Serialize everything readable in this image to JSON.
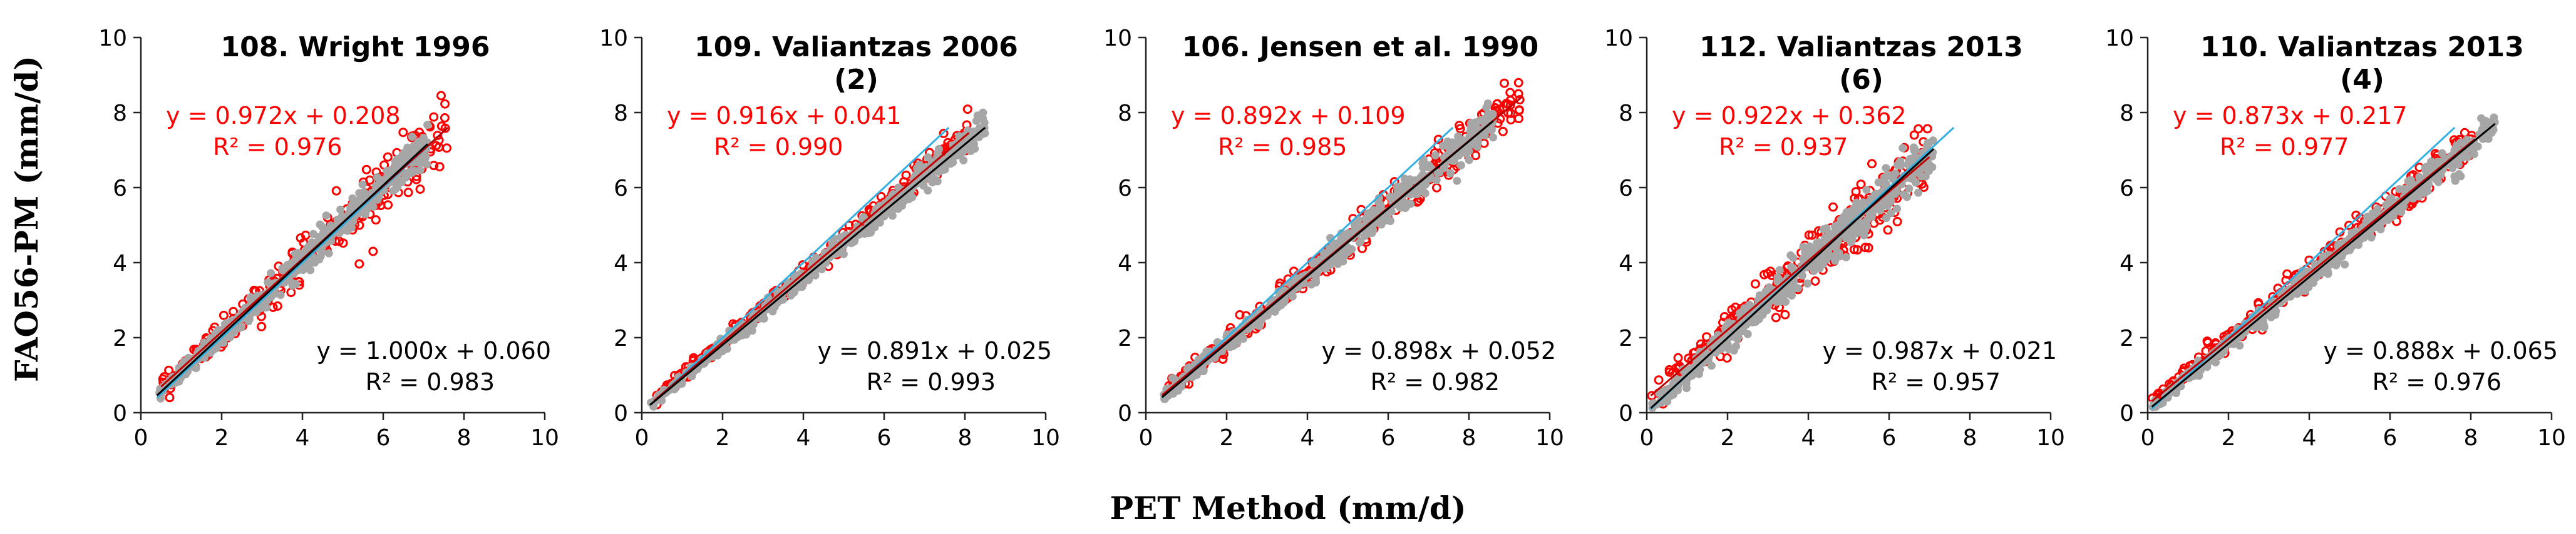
{
  "figure": {
    "y_axis_label": "FAO56-PM (mm/d)",
    "x_axis_label": "PET Method (mm/d)"
  },
  "chart_data": [
    {
      "type": "scatter",
      "title": "108. Wright 1996",
      "title_lines": [
        "108. Wright 1996"
      ],
      "xlim": [
        0,
        10
      ],
      "ylim": [
        0,
        10
      ],
      "x_ticks": [
        0,
        2,
        4,
        6,
        8,
        10
      ],
      "y_ticks": [
        0,
        2,
        4,
        6,
        8,
        10
      ],
      "x_tick_labels": [
        "0",
        "2",
        "4",
        "6",
        "8",
        "10"
      ],
      "y_tick_labels": [
        "0",
        "2",
        "4",
        "6",
        "8",
        "10"
      ],
      "grid": false,
      "red_fit": {
        "equation": "y = 0.972x + 0.208",
        "r2": "R² = 0.976",
        "slope": 0.972,
        "intercept": 0.208
      },
      "black_fit": {
        "equation": "y = 1.000x + 0.060",
        "r2": "R² = 0.983",
        "slope": 1.0,
        "intercept": 0.06
      },
      "series": [
        {
          "name": "calibrated (grey)",
          "color": "#a6a6a6",
          "cloud": {
            "x_min": 0.4,
            "x_max": 7.1,
            "slope": 1.0,
            "intercept": 0.06,
            "spread": 0.45
          }
        },
        {
          "name": "uncalibrated (red)",
          "color": "#ff0000",
          "cloud": {
            "x_min": 0.5,
            "x_max": 7.6,
            "slope": 0.972,
            "intercept": 0.208,
            "spread": 0.8
          }
        }
      ],
      "reference_line": {
        "color": "#33b0e0",
        "x_min": 0.4,
        "x_max": 7.6
      }
    },
    {
      "type": "scatter",
      "title": "109. Valiantzas 2006 (2)",
      "title_lines": [
        "109. Valiantzas 2006",
        "(2)"
      ],
      "xlim": [
        0,
        10
      ],
      "ylim": [
        0,
        10
      ],
      "x_ticks": [
        0,
        2,
        4,
        6,
        8,
        10
      ],
      "y_ticks": [
        0,
        2,
        4,
        6,
        8,
        10
      ],
      "x_tick_labels": [
        "0",
        "2",
        "4",
        "6",
        "8",
        "10"
      ],
      "y_tick_labels": [
        "0",
        "2",
        "4",
        "6",
        "8",
        "10"
      ],
      "grid": false,
      "red_fit": {
        "equation": "y = 0.916x + 0.041",
        "r2": "R² = 0.990",
        "slope": 0.916,
        "intercept": 0.041
      },
      "black_fit": {
        "equation": "y = 0.891x + 0.025",
        "r2": "R² = 0.993",
        "slope": 0.891,
        "intercept": 0.025
      },
      "series": [
        {
          "name": "calibrated (grey)",
          "color": "#a6a6a6",
          "cloud": {
            "x_min": 0.2,
            "x_max": 8.5,
            "slope": 0.891,
            "intercept": 0.025,
            "spread": 0.35
          }
        },
        {
          "name": "uncalibrated (red)",
          "color": "#ff0000",
          "cloud": {
            "x_min": 0.3,
            "x_max": 8.1,
            "slope": 0.916,
            "intercept": 0.041,
            "spread": 0.4
          }
        }
      ],
      "reference_line": {
        "color": "#33b0e0",
        "x_min": 0.2,
        "x_max": 7.6
      }
    },
    {
      "type": "scatter",
      "title": "106. Jensen et al. 1990",
      "title_lines": [
        "106. Jensen et al. 1990"
      ],
      "xlim": [
        0,
        10
      ],
      "ylim": [
        0,
        10
      ],
      "x_ticks": [
        0,
        2,
        4,
        6,
        8,
        10
      ],
      "y_ticks": [
        0,
        2,
        4,
        6,
        8,
        10
      ],
      "x_tick_labels": [
        "0",
        "2",
        "4",
        "6",
        "8",
        "10"
      ],
      "y_tick_labels": [
        "0",
        "2",
        "4",
        "6",
        "8",
        "10"
      ],
      "grid": false,
      "red_fit": {
        "equation": "y = 0.892x + 0.109",
        "r2": "R² = 0.985",
        "slope": 0.892,
        "intercept": 0.109
      },
      "black_fit": {
        "equation": "y = 0.898x + 0.052",
        "r2": "R² = 0.982",
        "slope": 0.898,
        "intercept": 0.052
      },
      "series": [
        {
          "name": "calibrated (grey)",
          "color": "#a6a6a6",
          "cloud": {
            "x_min": 0.4,
            "x_max": 8.6,
            "slope": 0.898,
            "intercept": 0.052,
            "spread": 0.45
          }
        },
        {
          "name": "uncalibrated (red)",
          "color": "#ff0000",
          "cloud": {
            "x_min": 0.4,
            "x_max": 9.3,
            "slope": 0.892,
            "intercept": 0.109,
            "spread": 0.6
          }
        }
      ],
      "reference_line": {
        "color": "#33b0e0",
        "x_min": 0.4,
        "x_max": 7.6
      }
    },
    {
      "type": "scatter",
      "title": "112. Valiantzas 2013 (6)",
      "title_lines": [
        "112. Valiantzas 2013",
        "(6)"
      ],
      "xlim": [
        0,
        10
      ],
      "ylim": [
        0,
        10
      ],
      "x_ticks": [
        0,
        2,
        4,
        6,
        8,
        10
      ],
      "y_ticks": [
        0,
        2,
        4,
        6,
        8,
        10
      ],
      "x_tick_labels": [
        "0",
        "2",
        "4",
        "6",
        "8",
        "10"
      ],
      "y_tick_labels": [
        "0",
        "2",
        "4",
        "6",
        "8",
        "10"
      ],
      "grid": false,
      "red_fit": {
        "equation": "y = 0.922x + 0.362",
        "r2": "R² = 0.937",
        "slope": 0.922,
        "intercept": 0.362
      },
      "black_fit": {
        "equation": "y = 0.987x + 0.021",
        "r2": "R² = 0.957",
        "slope": 0.987,
        "intercept": 0.021
      },
      "series": [
        {
          "name": "calibrated (grey)",
          "color": "#a6a6a6",
          "cloud": {
            "x_min": 0.1,
            "x_max": 7.1,
            "slope": 0.987,
            "intercept": 0.021,
            "spread": 0.6
          }
        },
        {
          "name": "uncalibrated (red)",
          "color": "#ff0000",
          "cloud": {
            "x_min": 0.1,
            "x_max": 7.0,
            "slope": 0.922,
            "intercept": 0.362,
            "spread": 0.9
          }
        }
      ],
      "reference_line": {
        "color": "#33b0e0",
        "x_min": 0.1,
        "x_max": 7.6
      }
    },
    {
      "type": "scatter",
      "title": "110. Valiantzas 2013 (4)",
      "title_lines": [
        "110. Valiantzas 2013",
        "(4)"
      ],
      "xlim": [
        0,
        10
      ],
      "ylim": [
        0,
        10
      ],
      "x_ticks": [
        0,
        2,
        4,
        6,
        8,
        10
      ],
      "y_ticks": [
        0,
        2,
        4,
        6,
        8,
        10
      ],
      "x_tick_labels": [
        "0",
        "2",
        "4",
        "6",
        "8",
        "10"
      ],
      "y_tick_labels": [
        "0",
        "2",
        "4",
        "6",
        "8",
        "10"
      ],
      "grid": false,
      "red_fit": {
        "equation": "y = 0.873x + 0.217",
        "r2": "R² = 0.977",
        "slope": 0.873,
        "intercept": 0.217
      },
      "black_fit": {
        "equation": "y = 0.888x + 0.065",
        "r2": "R² = 0.976",
        "slope": 0.888,
        "intercept": 0.065
      },
      "series": [
        {
          "name": "calibrated (grey)",
          "color": "#a6a6a6",
          "cloud": {
            "x_min": 0.1,
            "x_max": 8.6,
            "slope": 0.888,
            "intercept": 0.065,
            "spread": 0.4
          }
        },
        {
          "name": "uncalibrated (red)",
          "color": "#ff0000",
          "cloud": {
            "x_min": 0.1,
            "x_max": 8.1,
            "slope": 0.873,
            "intercept": 0.217,
            "spread": 0.5
          }
        }
      ],
      "reference_line": {
        "color": "#33b0e0",
        "x_min": 0.1,
        "x_max": 7.6
      }
    }
  ]
}
